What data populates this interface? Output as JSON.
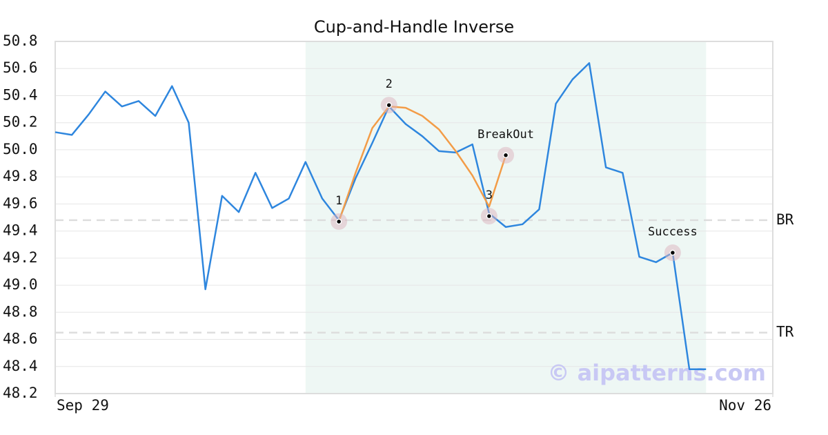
{
  "chart_data": {
    "type": "line",
    "title": "Cup-and-Handle Inverse",
    "x": [
      0,
      1,
      2,
      3,
      4,
      5,
      6,
      7,
      8,
      9,
      10,
      11,
      12,
      13,
      14,
      15,
      16,
      17,
      18,
      19,
      20,
      21,
      22,
      23,
      24,
      25,
      26,
      27,
      28,
      29,
      30,
      31,
      32,
      33,
      34,
      35,
      36,
      37,
      38,
      39
    ],
    "xlim": [
      0,
      43
    ],
    "xticks": [
      {
        "value": 0,
        "label": "Sep 29"
      },
      {
        "value": 43,
        "label": "Nov 26"
      }
    ],
    "ylim": [
      48.2,
      50.8
    ],
    "yticks": [
      48.2,
      48.4,
      48.6,
      48.8,
      {
        "value": 49,
        "label": "49.0"
      },
      49.2,
      49.4,
      49.6,
      49.8,
      {
        "value": 50,
        "label": "50.0"
      },
      50.2,
      50.4,
      50.6,
      50.8
    ],
    "grid": true,
    "series": [
      {
        "color": "#2e86de",
        "values": [
          50.13,
          50.11,
          50.26,
          50.43,
          50.32,
          50.36,
          50.25,
          50.47,
          50.2,
          48.97,
          49.66,
          49.54,
          49.83,
          49.57,
          49.64,
          49.91,
          49.64,
          49.48,
          49.79,
          50.05,
          50.32,
          50.19,
          50.1,
          49.99,
          49.98,
          50.04,
          49.53,
          49.43,
          49.45,
          49.56,
          50.34,
          50.52,
          50.64,
          49.87,
          49.83,
          49.21,
          49.17,
          49.24,
          48.38,
          48.38
        ]
      }
    ],
    "pattern": {
      "color": "#f39c47",
      "x": [
        17,
        18,
        19,
        20,
        21,
        22,
        23,
        24,
        25,
        26,
        27
      ],
      "values": [
        49.47,
        49.83,
        50.16,
        50.32,
        50.31,
        50.25,
        50.15,
        49.99,
        49.81,
        49.58,
        49.96
      ]
    },
    "markers": [
      {
        "label": "1",
        "x": 17,
        "value": 49.47
      },
      {
        "label": "2",
        "x": 20,
        "value": 50.33
      },
      {
        "label": "3",
        "x": 26,
        "value": 49.51
      },
      {
        "label": "BreakOut",
        "x": 27,
        "value": 49.96
      },
      {
        "label": "Success",
        "x": 37,
        "value": 49.24
      }
    ],
    "hlines": [
      {
        "label": "BR",
        "value": 49.48
      },
      {
        "label": "TR",
        "value": 48.65
      }
    ],
    "shaded": {
      "range": [
        15,
        39
      ],
      "color": "#eef7f4"
    },
    "watermark": "© aipatterns.com"
  }
}
